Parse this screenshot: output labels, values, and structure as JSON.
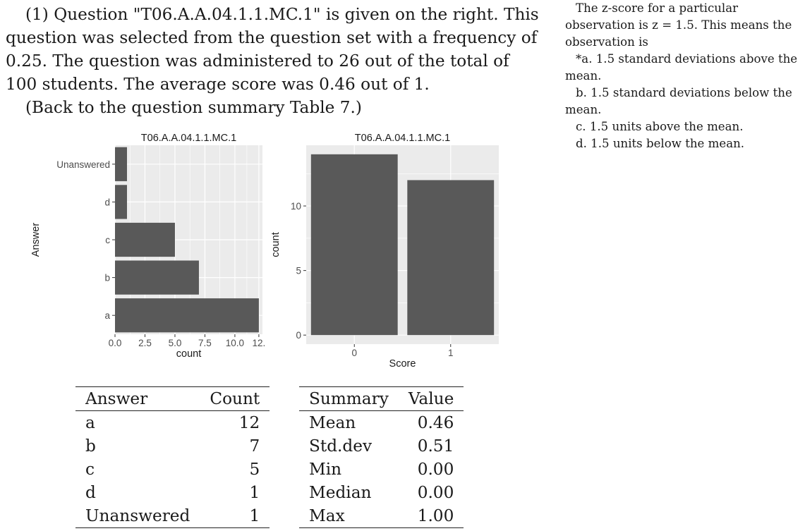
{
  "intro": {
    "line1": "(1) Question \"T06.A.A.04.1.1.MC.1\" is given on the right. This question was selected from the question set with a frequency of 0.25. The question was administered to 26 out of the total of 100 students. The average score was 0.46 out of 1.",
    "back_link": "(Back to the question summary Table 7.)"
  },
  "question": {
    "stem": "The z-score for a particular observation is z = 1.5. This means the observation is",
    "options": [
      "*a. 1.5 standard deviations above the mean.",
      "b. 1.5 standard deviations below the mean.",
      "c. 1.5 units above the mean.",
      "d. 1.5 units below the mean."
    ]
  },
  "chart_data": [
    {
      "type": "bar",
      "orientation": "horizontal",
      "title": "T06.A.A.04.1.1.MC.1",
      "xlabel": "count",
      "ylabel": "Answer",
      "categories": [
        "Unanswered",
        "d",
        "c",
        "b",
        "a"
      ],
      "values": [
        1,
        1,
        5,
        7,
        12
      ],
      "xlim": [
        0,
        12.3
      ],
      "x_ticks": [
        "0.0",
        "2.5",
        "5.0",
        "7.5",
        "10.0",
        "12."
      ],
      "x_tick_values": [
        0,
        2.5,
        5,
        7.5,
        10,
        12
      ],
      "grid": true,
      "bar_color": "#595959",
      "panel_color": "#ebebeb"
    },
    {
      "type": "bar",
      "title": "T06.A.A.04.1.1.MC.1",
      "xlabel": "Score",
      "ylabel": "count",
      "categories": [
        "0",
        "1"
      ],
      "values": [
        14,
        12
      ],
      "ylim": [
        -0.7,
        14.7
      ],
      "y_ticks": [
        "0",
        "5",
        "10"
      ],
      "y_tick_values": [
        0,
        5,
        10
      ],
      "grid": true,
      "bar_color": "#595959",
      "panel_color": "#ebebeb"
    }
  ],
  "answer_table": {
    "headers": [
      "Answer",
      "Count"
    ],
    "rows": [
      [
        "a",
        "12"
      ],
      [
        "b",
        "7"
      ],
      [
        "c",
        "5"
      ],
      [
        "d",
        "1"
      ],
      [
        "Unanswered",
        "1"
      ]
    ]
  },
  "summary_table": {
    "headers": [
      "Summary",
      "Value"
    ],
    "rows": [
      [
        "Mean",
        "0.46"
      ],
      [
        "Std.dev",
        "0.51"
      ],
      [
        "Min",
        "0.00"
      ],
      [
        "Median",
        "0.00"
      ],
      [
        "Max",
        "1.00"
      ]
    ]
  }
}
